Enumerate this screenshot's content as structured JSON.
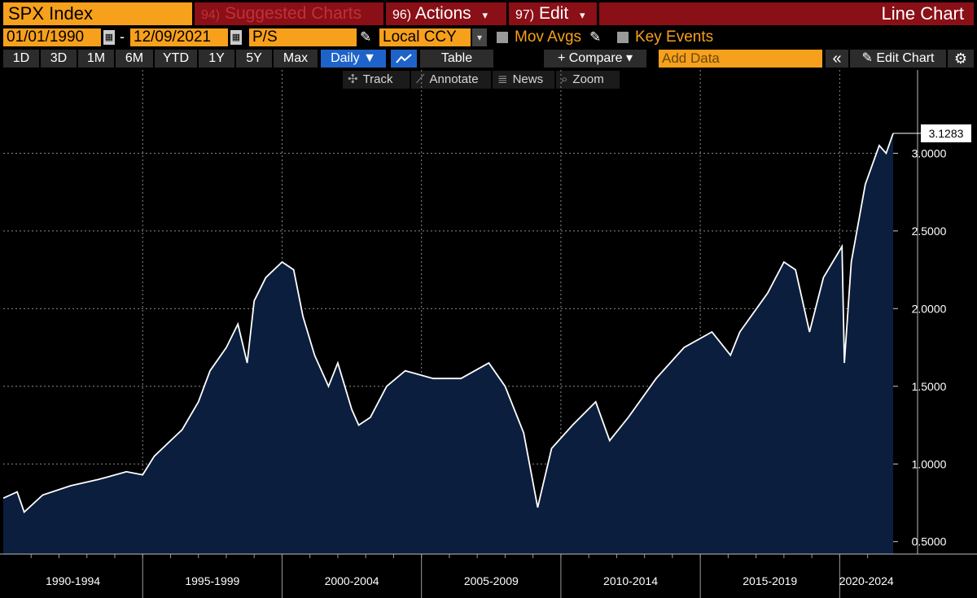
{
  "header": {
    "ticker": "SPX Index",
    "menu": [
      {
        "num": "94)",
        "label": "Suggested Charts",
        "caret": ""
      },
      {
        "num": "96)",
        "label": "Actions",
        "caret": "▾"
      },
      {
        "num": "97)",
        "label": "Edit",
        "caret": "▾"
      }
    ],
    "title": "Line Chart"
  },
  "controls": {
    "start_date": "01/01/1990",
    "dash": "-",
    "end_date": "12/09/2021",
    "field": "P/S",
    "currency": "Local CCY",
    "mov_avgs": "Mov Avgs",
    "key_events": "Key Events"
  },
  "toolbar": {
    "periods": [
      "1D",
      "3D",
      "1M",
      "6M",
      "YTD",
      "1Y",
      "5Y",
      "Max"
    ],
    "frequency": "Daily ▼",
    "table": "Table",
    "compare": "+ Compare ▾",
    "add_data_placeholder": "Add Data",
    "collapse": "«",
    "edit_chart": "Edit Chart"
  },
  "tools": [
    "Track",
    "Annotate",
    "News",
    "Zoom"
  ],
  "colors": {
    "orange": "#f7a01c",
    "dark_red": "#8a0f17",
    "selected_blue": "#1e63c9",
    "area_fill": "#0b1e3d",
    "line": "#ffffff"
  },
  "chart_data": {
    "type": "area",
    "series": [
      {
        "x": [
          "1990-01",
          "1990-07",
          "1990-10",
          "1991-06",
          "1992-06",
          "1993-06",
          "1994-06",
          "1995-01",
          "1995-06",
          "1996-01",
          "1996-06",
          "1997-01",
          "1997-06",
          "1998-01",
          "1998-06",
          "1998-10",
          "1999-01",
          "1999-06",
          "2000-01",
          "2000-06",
          "2000-10",
          "2001-03",
          "2001-09",
          "2002-01",
          "2002-07",
          "2002-10",
          "2003-03",
          "2003-10",
          "2004-06",
          "2005-06",
          "2006-06",
          "2007-06",
          "2008-01",
          "2008-09",
          "2009-03",
          "2009-09",
          "2010-06",
          "2011-04",
          "2011-10",
          "2012-06",
          "2013-06",
          "2014-06",
          "2015-06",
          "2016-02",
          "2016-06",
          "2017-06",
          "2018-01",
          "2018-06",
          "2018-12",
          "2019-06",
          "2020-02",
          "2020-03",
          "2020-06",
          "2020-12",
          "2021-06",
          "2021-09",
          "2021-12"
        ],
        "y": [
          0.78,
          0.82,
          0.69,
          0.8,
          0.86,
          0.9,
          0.95,
          0.93,
          1.05,
          1.15,
          1.22,
          1.4,
          1.6,
          1.75,
          1.9,
          1.65,
          2.05,
          2.2,
          2.3,
          2.25,
          1.95,
          1.7,
          1.5,
          1.65,
          1.35,
          1.25,
          1.3,
          1.5,
          1.6,
          1.55,
          1.55,
          1.65,
          1.5,
          1.2,
          0.72,
          1.1,
          1.25,
          1.4,
          1.15,
          1.3,
          1.55,
          1.75,
          1.85,
          1.7,
          1.85,
          2.1,
          2.3,
          2.25,
          1.85,
          2.2,
          2.4,
          1.65,
          2.3,
          2.8,
          3.05,
          3.0,
          3.1283
        ]
      }
    ],
    "x_tick_labels": [
      "1990-1994",
      "1995-1999",
      "2000-2004",
      "2005-2009",
      "2010-2014",
      "2015-2019",
      "2020-2024"
    ],
    "y_ticks": [
      0.5,
      1.0,
      1.5,
      2.0,
      2.5,
      3.0
    ],
    "y_tick_labels": [
      "0.5000",
      "1.0000",
      "1.5000",
      "2.0000",
      "2.5000",
      "3.0000"
    ],
    "last_value_label": "3.1283",
    "ylim": [
      0.42,
      3.4
    ],
    "xlim": [
      "1990-01",
      "2021-12"
    ],
    "grid": true,
    "y_axis_side": "right"
  }
}
